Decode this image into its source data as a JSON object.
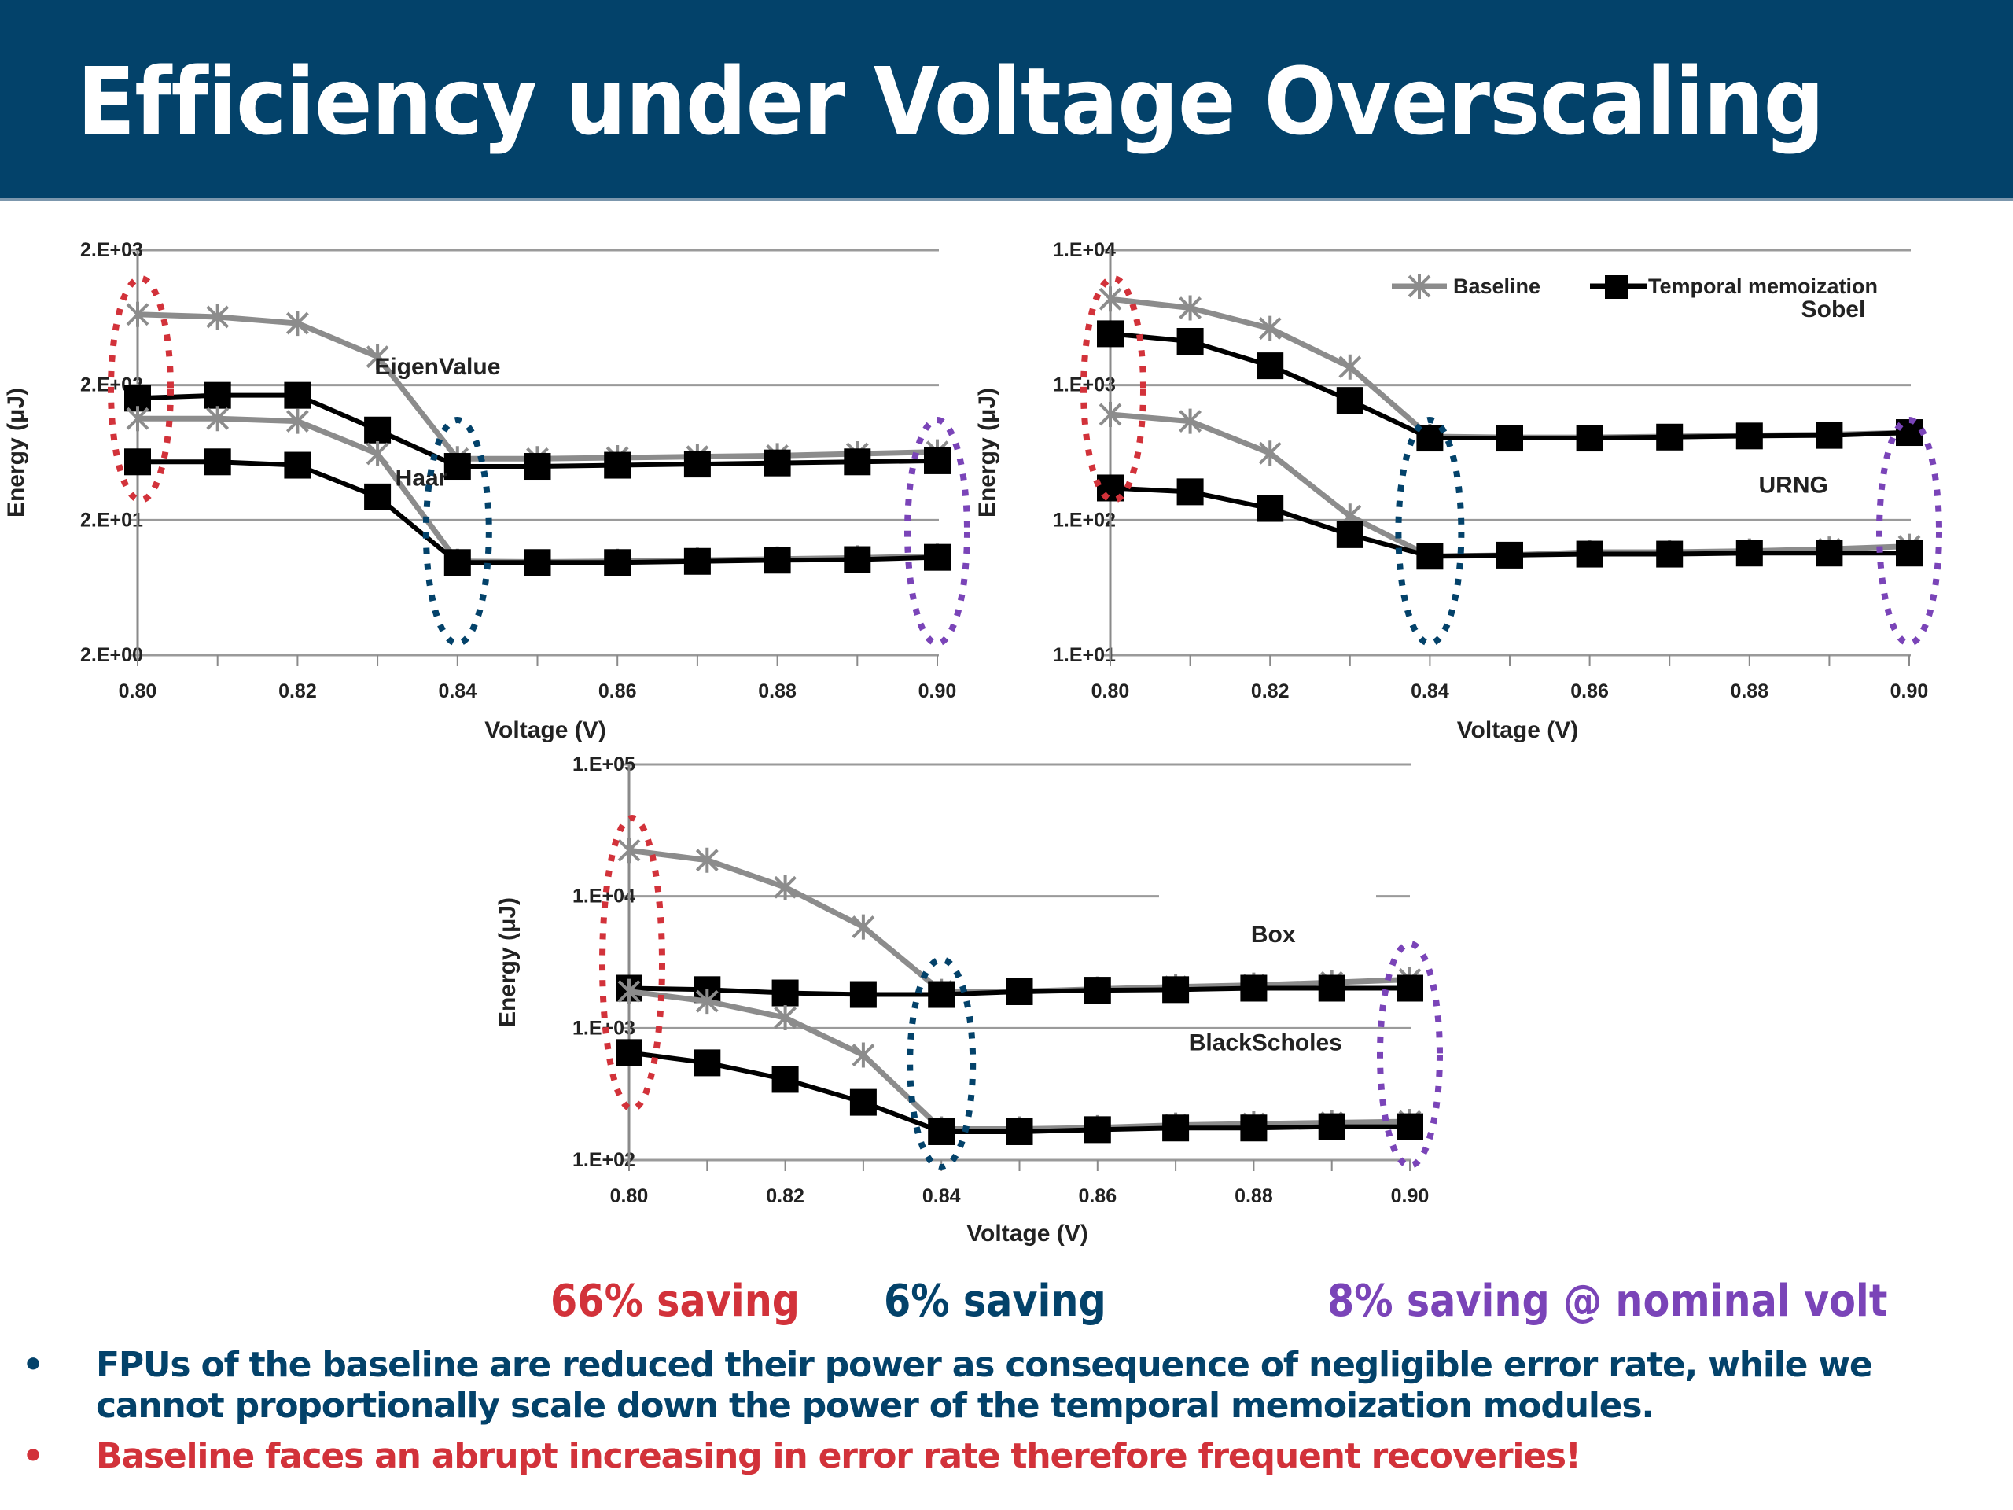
{
  "slide": {
    "title": "Efficiency under Voltage Overscaling",
    "header_color": "#03426a"
  },
  "savings": [
    {
      "text": "66% saving",
      "color": "#d2323a"
    },
    {
      "text": "6% saving",
      "color": "#03426a"
    },
    {
      "text": "8% saving @ nominal volt",
      "color": "#7a44b8"
    }
  ],
  "bullets": [
    {
      "dot": "•",
      "text": "FPUs of the baseline are reduced their power as consequence of negligible error rate, while we cannot proportionally scale down the power of the temporal memoization modules.",
      "color": "#03426a"
    },
    {
      "dot": "•",
      "text": "Baseline faces an abrupt increasing in error rate therefore frequent recoveries!",
      "color": "#d2323a"
    }
  ],
  "legend": {
    "baseline": "Baseline",
    "memo": "Temporal memoization",
    "baseline_color": "#8c8c8c",
    "memo_color": "#000000"
  },
  "highlight_colors": {
    "low_voltage": "#d2323a",
    "mid_voltage": "#03426a",
    "nominal": "#7a44b8"
  },
  "chart_data": [
    {
      "type": "line",
      "title": "",
      "xlabel": "Voltage (V)",
      "ylabel": "Energy (μJ)",
      "yscale": "log",
      "ylim": [
        2,
        2000
      ],
      "yticks": [
        2,
        20,
        200,
        2000
      ],
      "ytick_labels": [
        "2.E+00",
        "2.E+01",
        "2.E+02",
        "2.E+03"
      ],
      "xlim": [
        0.8,
        0.9
      ],
      "xticks": [
        0.8,
        0.82,
        0.84,
        0.86,
        0.88,
        0.9
      ],
      "xtick_labels": [
        "0.80",
        "0.82",
        "0.84",
        "0.86",
        "0.88",
        "0.90"
      ],
      "grid": true,
      "x": [
        0.8,
        0.81,
        0.82,
        0.83,
        0.84,
        0.85,
        0.86,
        0.87,
        0.88,
        0.89,
        0.9
      ],
      "series": [
        {
          "name": "EigenValue Baseline",
          "group": "EigenValue",
          "kind": "baseline",
          "values": [
            668,
            640,
            574,
            324,
            57,
            57,
            58,
            59,
            60,
            62,
            64
          ]
        },
        {
          "name": "EigenValue Temporal memoization",
          "group": "EigenValue",
          "kind": "memo",
          "values": [
            160,
            168,
            168,
            93,
            50,
            50,
            51,
            52,
            53,
            54,
            55
          ]
        },
        {
          "name": "Haar Baseline",
          "group": "Haar",
          "kind": "baseline",
          "values": [
            113,
            113,
            108,
            62,
            9.9,
            9.8,
            9.9,
            10.1,
            10.3,
            10.5,
            10.8
          ]
        },
        {
          "name": "Haar Temporal memoization",
          "group": "Haar",
          "kind": "memo",
          "values": [
            54,
            54,
            51,
            29.7,
            9.7,
            9.7,
            9.7,
            9.9,
            10.1,
            10.2,
            10.6
          ]
        }
      ],
      "annotations": [
        {
          "text": "EigenValue",
          "x": 0.8375,
          "y": 240
        },
        {
          "text": "Haar",
          "x": 0.8355,
          "y": 36
        }
      ],
      "highlights": [
        0.8,
        0.84,
        0.9
      ]
    },
    {
      "type": "line",
      "title": "",
      "xlabel": "Voltage (V)",
      "ylabel": "Energy (μJ)",
      "yscale": "log",
      "ylim": [
        10,
        10000
      ],
      "yticks": [
        10,
        100,
        1000,
        10000
      ],
      "ytick_labels": [
        "1.E+01",
        "1.E+02",
        "1.E+03",
        "1.E+04"
      ],
      "xlim": [
        0.8,
        0.9
      ],
      "xticks": [
        0.8,
        0.82,
        0.84,
        0.86,
        0.88,
        0.9
      ],
      "xtick_labels": [
        "0.80",
        "0.82",
        "0.84",
        "0.86",
        "0.88",
        "0.90"
      ],
      "grid": true,
      "legend": "top-right",
      "x": [
        0.8,
        0.81,
        0.82,
        0.83,
        0.84,
        0.85,
        0.86,
        0.87,
        0.88,
        0.89,
        0.9
      ],
      "series": [
        {
          "name": "Sobel Baseline",
          "group": "Sobel",
          "kind": "baseline",
          "values": [
            4340,
            3730,
            2630,
            1360,
            416,
            410,
            410,
            416,
            424,
            430,
            445
          ]
        },
        {
          "name": "Sobel Temporal memoization",
          "group": "Sobel",
          "kind": "memo",
          "values": [
            2400,
            2110,
            1390,
            770,
            405,
            405,
            405,
            412,
            420,
            424,
            445
          ]
        },
        {
          "name": "URNG Baseline",
          "group": "URNG",
          "kind": "baseline",
          "values": [
            606,
            540,
            313,
            107,
            54,
            55,
            58,
            58,
            59,
            61,
            64
          ]
        },
        {
          "name": "URNG Temporal memoization",
          "group": "URNG",
          "kind": "memo",
          "values": [
            173,
            162,
            122,
            78,
            54,
            55,
            56,
            56,
            57,
            57,
            57
          ]
        }
      ],
      "annotations": [
        {
          "text": "Sobel",
          "x": 0.8905,
          "y": 3200
        },
        {
          "text": "URNG",
          "x": 0.8855,
          "y": 160
        }
      ],
      "highlights": [
        0.8,
        0.84,
        0.9
      ]
    },
    {
      "type": "line",
      "title": "",
      "xlabel": "Voltage (V)",
      "ylabel": "Energy (μJ)",
      "yscale": "log",
      "ylim": [
        100,
        100000
      ],
      "yticks": [
        100,
        1000,
        10000,
        100000
      ],
      "ytick_labels": [
        "1.E+02",
        "1.E+03",
        "1.E+04",
        "1.E+05"
      ],
      "xlim": [
        0.8,
        0.9
      ],
      "xticks": [
        0.8,
        0.82,
        0.84,
        0.86,
        0.88,
        0.9
      ],
      "xtick_labels": [
        "0.80",
        "0.82",
        "0.84",
        "0.86",
        "0.88",
        "0.90"
      ],
      "grid": true,
      "x": [
        0.8,
        0.81,
        0.82,
        0.83,
        0.84,
        0.85,
        0.86,
        0.87,
        0.88,
        0.89,
        0.9
      ],
      "series": [
        {
          "name": "Box Baseline",
          "group": "Box",
          "kind": "baseline",
          "values": [
            22300,
            18800,
            11700,
            5860,
            1900,
            1900,
            1980,
            2060,
            2120,
            2220,
            2340
          ]
        },
        {
          "name": "Box Temporal memoization",
          "group": "Box",
          "kind": "memo",
          "values": [
            2010,
            1960,
            1850,
            1800,
            1800,
            1890,
            1940,
            1960,
            2010,
            2010,
            2010
          ]
        },
        {
          "name": "BlackScholes Baseline",
          "group": "BlackScholes",
          "kind": "baseline",
          "values": [
            1900,
            1600,
            1200,
            625,
            172,
            172,
            176,
            184,
            188,
            192,
            196
          ]
        },
        {
          "name": "BlackScholes Temporal memoization",
          "group": "BlackScholes",
          "kind": "memo",
          "values": [
            653,
            546,
            409,
            274,
            164,
            164,
            170,
            175,
            175,
            179,
            179
          ]
        }
      ],
      "annotations": [
        {
          "text": "Box",
          "x": 0.8825,
          "y": 4500
        },
        {
          "text": "BlackScholes",
          "x": 0.8815,
          "y": 680
        }
      ],
      "highlights": [
        0.8,
        0.84,
        0.9
      ]
    }
  ]
}
